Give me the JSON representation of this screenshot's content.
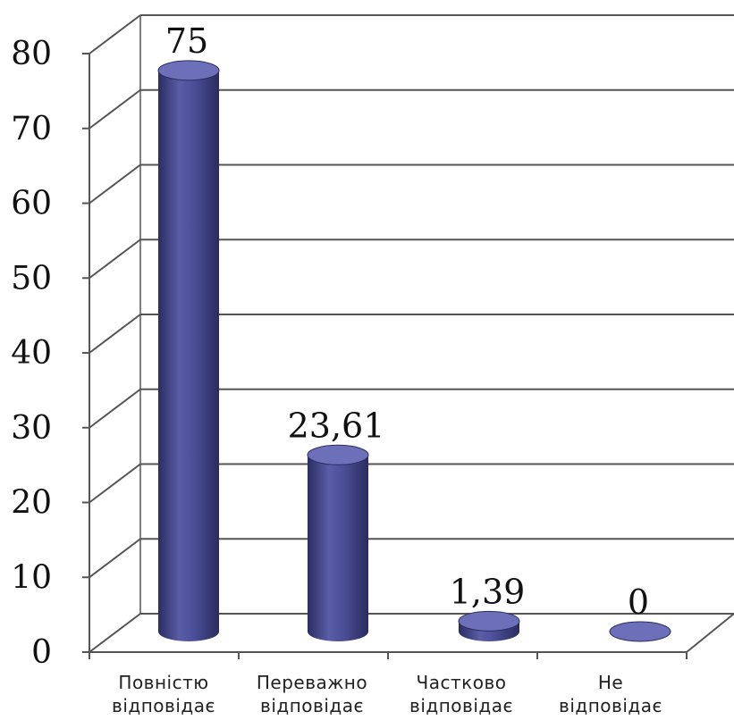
{
  "chart_data": {
    "type": "bar",
    "categories": [
      [
        "Повністю",
        "відповідає"
      ],
      [
        "Переважно",
        "відповідає"
      ],
      [
        "Частково",
        "відповідає"
      ],
      [
        "Не",
        "відповідає"
      ]
    ],
    "values": [
      75,
      23.61,
      1.39,
      0
    ],
    "data_labels": [
      "75",
      "23,61",
      "1,39",
      "0"
    ],
    "y_ticks": [
      "0",
      "10",
      "20",
      "30",
      "40",
      "50",
      "60",
      "70",
      "80"
    ],
    "ylim": [
      0,
      80
    ],
    "grid": true,
    "style": "3d-cylinder",
    "colors": {
      "bar": "#3f4185",
      "bar_light": "#6d70b8",
      "bar_dark": "#2c2d63",
      "grid": "#555555"
    }
  }
}
